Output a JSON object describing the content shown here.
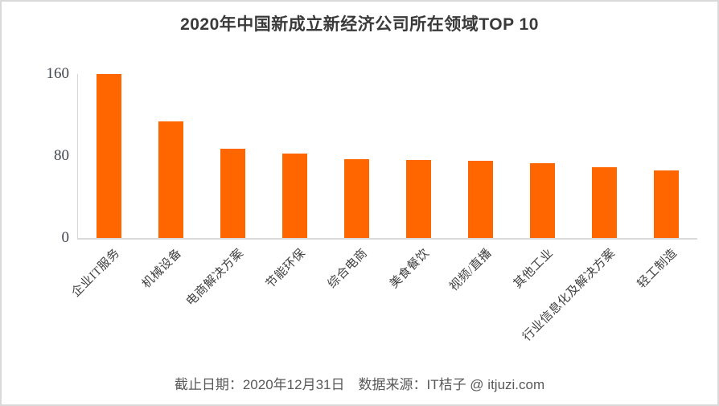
{
  "window": {
    "background": "#ffffff",
    "border_color": "#d9d9d9"
  },
  "chart_data": {
    "type": "bar",
    "title": "2020年中国新成立新经济公司所在领域TOP  10",
    "categories": [
      "企业IT服务",
      "机械设备",
      "电商解决方案",
      "节能环保",
      "综合电商",
      "美食餐饮",
      "视频/直播",
      "其他工业",
      "行业信息化及解决方案",
      "轻工制造"
    ],
    "values": [
      160,
      114,
      87,
      82,
      77,
      76,
      75,
      73,
      69,
      66
    ],
    "xlabel": "",
    "ylabel": "",
    "ylim": [
      0,
      160
    ],
    "yticks": [
      0,
      80,
      160
    ],
    "grid": false,
    "legend": "none",
    "bar_color": "#ff6600",
    "axis_line_color": "#d9d9d9",
    "tick_label_color": "#404040"
  },
  "footer": {
    "text": "截止日期：2020年12月31日　数据来源：IT桔子 @ itjuzi.com"
  }
}
